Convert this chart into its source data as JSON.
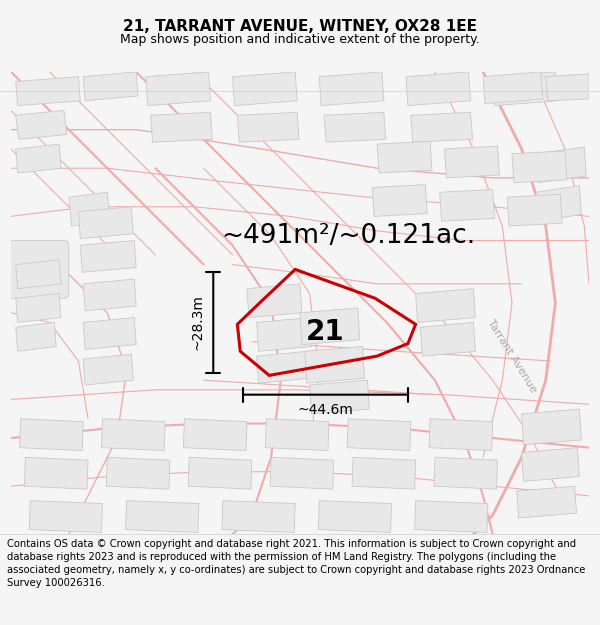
{
  "title": "21, TARRANT AVENUE, WITNEY, OX28 1EE",
  "subtitle": "Map shows position and indicative extent of the property.",
  "area_text": "~491m²/~0.121ac.",
  "label_number": "21",
  "dim_height": "~28.3m",
  "dim_width": "~44.6m",
  "road_label": "Tarrant Avenue",
  "footer_text": "Contains OS data © Crown copyright and database right 2021. This information is subject to Crown copyright and database rights 2023 and is reproduced with the permission of HM Land Registry. The polygons (including the associated geometry, namely x, y co-ordinates) are subject to Crown copyright and database rights 2023 Ordnance Survey 100026316.",
  "bg_color": "#f5f5f5",
  "map_bg": "#ffffff",
  "building_fill": "#e8e8e8",
  "building_edge": "#c8c8c8",
  "pink": "#f0aaaa",
  "red_poly": "#cc0000",
  "title_fontsize": 11,
  "subtitle_fontsize": 9,
  "area_fontsize": 19,
  "label_fontsize": 20,
  "dim_fontsize": 10,
  "footer_fontsize": 7.2,
  "road_label_color": "#aaaaaa",
  "road_label_fontsize": 8
}
